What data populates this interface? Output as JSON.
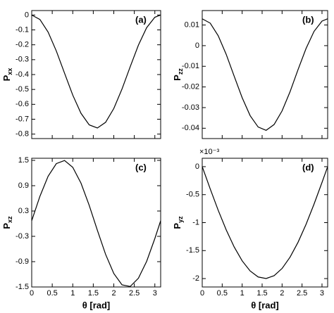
{
  "chart_data": [
    {
      "type": "line",
      "panel_label": "(a)",
      "ylabel": "P",
      "ylabel_subscript": "xx",
      "x": [
        0,
        0.2,
        0.4,
        0.6,
        0.8,
        1.0,
        1.2,
        1.4,
        1.6,
        1.8,
        2.0,
        2.2,
        2.4,
        2.6,
        2.8,
        3.0,
        3.1416
      ],
      "values": [
        0,
        -0.03,
        -0.115,
        -0.242,
        -0.391,
        -0.538,
        -0.66,
        -0.738,
        -0.759,
        -0.721,
        -0.628,
        -0.497,
        -0.347,
        -0.202,
        -0.085,
        -0.015,
        0
      ],
      "color": "#000000",
      "xlim": [
        0,
        3.1416
      ],
      "xticks": [
        0,
        0.5,
        1,
        1.5,
        2,
        2.5,
        3
      ],
      "ylim": [
        -0.83,
        0.03
      ],
      "yticks": [
        0,
        -0.1,
        -0.2,
        -0.3,
        -0.4,
        -0.5,
        -0.6,
        -0.7,
        -0.8
      ]
    },
    {
      "type": "line",
      "panel_label": "(b)",
      "ylabel": "P",
      "ylabel_subscript": "zz",
      "x": [
        0,
        0.2,
        0.4,
        0.6,
        0.8,
        1.0,
        1.2,
        1.4,
        1.6,
        1.8,
        2.0,
        2.2,
        2.4,
        2.6,
        2.8,
        3.0,
        3.1416
      ],
      "values": [
        0.013,
        0.0109,
        0.0048,
        -0.0042,
        -0.0148,
        -0.0252,
        -0.0339,
        -0.0394,
        -0.041,
        -0.0382,
        -0.0316,
        -0.0223,
        -0.0116,
        -0.0014,
        0.0069,
        0.0119,
        0.013
      ],
      "color": "#000000",
      "xlim": [
        0,
        3.1416
      ],
      "xticks": [
        0,
        0.5,
        1,
        1.5,
        2,
        2.5,
        3
      ],
      "ylim": [
        -0.045,
        0.017
      ],
      "yticks": [
        0.01,
        0,
        -0.01,
        -0.02,
        -0.03,
        -0.04
      ]
    },
    {
      "type": "line",
      "panel_label": "(c)",
      "ylabel": "P",
      "ylabel_subscript": "xz",
      "xlabel": "θ [rad]",
      "x": [
        0,
        0.2,
        0.4,
        0.6,
        0.8,
        1.0,
        1.2,
        1.4,
        1.6,
        1.8,
        2.0,
        2.2,
        2.4,
        2.6,
        2.8,
        3.0,
        3.1416
      ],
      "values": [
        0.07,
        0.648,
        1.125,
        1.423,
        1.497,
        1.335,
        0.962,
        0.437,
        -0.158,
        -0.726,
        -1.181,
        -1.449,
        -1.488,
        -1.292,
        -0.893,
        -0.352,
        0.07
      ],
      "color": "#000000",
      "xlim": [
        0,
        3.1416
      ],
      "xticks": [
        0,
        0.5,
        1,
        1.5,
        2,
        2.5,
        3
      ],
      "ylim": [
        -1.5,
        1.55
      ],
      "yticks": [
        1.5,
        0.9,
        0.3,
        -0.3,
        -0.9,
        -1.5
      ]
    },
    {
      "type": "line",
      "panel_label": "(d)",
      "ylabel": "P",
      "ylabel_subscript": "yz",
      "xlabel": "θ [rad]",
      "axis_multiplier": "×10⁻³",
      "x": [
        0,
        0.2,
        0.4,
        0.6,
        0.8,
        1.0,
        1.2,
        1.4,
        1.6,
        1.8,
        2.0,
        2.2,
        2.4,
        2.6,
        2.8,
        3.0,
        3.1416
      ],
      "values": [
        0,
        -0.397,
        -0.779,
        -1.129,
        -1.435,
        -1.683,
        -1.864,
        -1.971,
        -1.999,
        -1.948,
        -1.819,
        -1.617,
        -1.351,
        -1.031,
        -0.67,
        -0.282,
        0
      ],
      "color": "#000000",
      "xlim": [
        0,
        3.1416
      ],
      "xticks": [
        0,
        0.5,
        1,
        1.5,
        2,
        2.5,
        3
      ],
      "ylim": [
        -2.15,
        0.15
      ],
      "yticks": [
        0,
        -0.5,
        -1,
        -1.5,
        -2
      ]
    }
  ]
}
